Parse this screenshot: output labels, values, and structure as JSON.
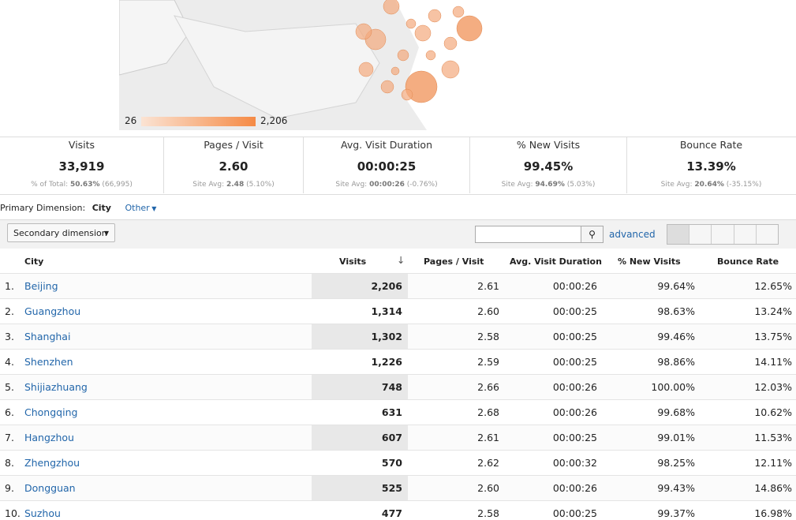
{
  "map_legend": {
    "min": "26",
    "max": "2,206"
  },
  "summary": [
    {
      "label": "Visits",
      "value": "33,919",
      "note_prefix": "% of Total:",
      "note_value": "50.63%",
      "note_extra": "(66,995)"
    },
    {
      "label": "Pages / Visit",
      "value": "2.60",
      "note_prefix": "Site Avg:",
      "note_value": "2.48",
      "note_extra": "(5.10%)"
    },
    {
      "label": "Avg. Visit Duration",
      "value": "00:00:25",
      "note_prefix": "Site Avg:",
      "note_value": "00:00:26",
      "note_extra": "(-0.76%)"
    },
    {
      "label": "% New Visits",
      "value": "99.45%",
      "note_prefix": "Site Avg:",
      "note_value": "94.69%",
      "note_extra": "(5.03%)"
    },
    {
      "label": "Bounce Rate",
      "value": "13.39%",
      "note_prefix": "Site Avg:",
      "note_value": "20.64%",
      "note_extra": "(-35.15%)"
    }
  ],
  "toolbar": {
    "primary_label": "Primary Dimension:",
    "primary_value": "City",
    "other": "Other",
    "secondary": "Secondary dimension",
    "advanced": "advanced"
  },
  "table": {
    "headers": [
      "City",
      "Visits",
      "Pages / Visit",
      "Avg. Visit Duration",
      "% New Visits",
      "Bounce Rate"
    ],
    "rows": [
      [
        "1.",
        "Beijing",
        "2,206",
        "2.61",
        "00:00:26",
        "99.64%",
        "12.65%"
      ],
      [
        "2.",
        "Guangzhou",
        "1,314",
        "2.60",
        "00:00:25",
        "98.63%",
        "13.24%"
      ],
      [
        "3.",
        "Shanghai",
        "1,302",
        "2.58",
        "00:00:25",
        "99.46%",
        "13.75%"
      ],
      [
        "4.",
        "Shenzhen",
        "1,226",
        "2.59",
        "00:00:25",
        "98.86%",
        "14.11%"
      ],
      [
        "5.",
        "Shijiazhuang",
        "748",
        "2.66",
        "00:00:26",
        "100.00%",
        "12.03%"
      ],
      [
        "6.",
        "Chongqing",
        "631",
        "2.68",
        "00:00:26",
        "99.68%",
        "10.62%"
      ],
      [
        "7.",
        "Hangzhou",
        "607",
        "2.61",
        "00:00:25",
        "99.01%",
        "11.53%"
      ],
      [
        "8.",
        "Zhengzhou",
        "570",
        "2.62",
        "00:00:32",
        "98.25%",
        "12.11%"
      ],
      [
        "9.",
        "Dongguan",
        "525",
        "2.60",
        "00:00:26",
        "99.43%",
        "14.86%"
      ],
      [
        "10.",
        "Suzhou",
        "477",
        "2.58",
        "00:00:25",
        "99.37%",
        "16.98%"
      ]
    ]
  }
}
